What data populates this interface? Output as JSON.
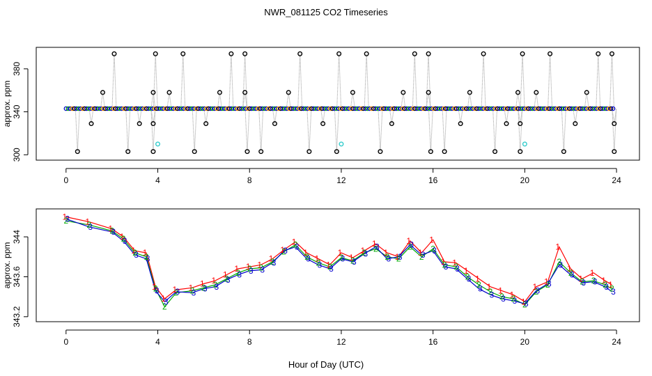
{
  "chart_data": [
    {
      "type": "scatter",
      "title": "NWR_081125  CO2 Timeseries",
      "xlabel": "",
      "ylabel": "approx. ppm",
      "xlim": [
        -1.3,
        25.0
      ],
      "ylim": [
        295,
        400
      ],
      "x_ticks": [
        0,
        4,
        8,
        12,
        16,
        20,
        24
      ],
      "y_ticks": [
        300,
        340,
        380
      ],
      "baseline": 343,
      "spike_high": 394,
      "spike_low": 303,
      "spike_mid_high": 358,
      "spike_mid_low": 329,
      "upper_spikes": [
        2.1,
        3.9,
        5.1,
        7.2,
        7.8,
        10.2,
        11.9,
        13.1,
        15.2,
        15.8,
        18.2,
        19.9,
        21.1,
        23.2,
        23.8
      ],
      "lower_spikes": [
        0.5,
        2.7,
        3.8,
        5.6,
        7.9,
        8.5,
        10.6,
        11.8,
        13.7,
        15.9,
        16.5,
        18.7,
        19.8,
        21.7,
        23.9
      ],
      "mid_high_spikes": [
        1.6,
        3.8,
        4.5,
        6.7,
        7.8,
        9.7,
        12.5,
        14.7,
        15.8,
        17.6,
        19.7,
        20.5,
        22.7
      ],
      "mid_low_spikes": [
        1.1,
        3.2,
        3.8,
        6.1,
        9.1,
        11.2,
        14.2,
        17.2,
        19.2,
        19.8,
        22.2,
        23.9
      ],
      "cyan_points": {
        "x": [
          4.0,
          12.0,
          20.0
        ],
        "y": [
          310,
          310,
          310
        ]
      }
    },
    {
      "type": "line",
      "title": "",
      "xlabel": "Hour of Day (UTC)",
      "ylabel": "approx. ppm",
      "xlim": [
        -1.3,
        25.0
      ],
      "ylim": [
        343.15,
        344.28
      ],
      "x_ticks": [
        0,
        4,
        8,
        12,
        16,
        20,
        24
      ],
      "y_ticks": [
        343.2,
        343.6,
        344.0
      ],
      "x": [
        0.0,
        1.0,
        2.0,
        2.5,
        3.0,
        3.5,
        3.9,
        4.3,
        4.8,
        5.5,
        6.0,
        6.5,
        7.0,
        7.5,
        8.0,
        8.5,
        9.0,
        9.5,
        10.0,
        10.5,
        11.0,
        11.5,
        12.0,
        12.5,
        13.0,
        13.5,
        14.0,
        14.5,
        15.0,
        15.5,
        16.0,
        16.5,
        17.0,
        17.5,
        18.0,
        18.5,
        19.0,
        19.5,
        20.0,
        20.5,
        21.0,
        21.5,
        22.0,
        22.5,
        23.0,
        23.5,
        23.8
      ],
      "series": [
        {
          "name": "1",
          "color": "#ff0000",
          "values": [
            344.2,
            344.15,
            344.08,
            344.0,
            343.86,
            343.84,
            343.5,
            343.38,
            343.47,
            343.49,
            343.53,
            343.56,
            343.62,
            343.68,
            343.7,
            343.72,
            343.78,
            343.87,
            343.95,
            343.84,
            343.78,
            343.72,
            343.84,
            343.79,
            343.86,
            343.93,
            343.84,
            343.8,
            343.96,
            343.84,
            343.97,
            343.75,
            343.74,
            343.66,
            343.58,
            343.5,
            343.46,
            343.42,
            343.35,
            343.5,
            343.55,
            343.9,
            343.68,
            343.58,
            343.64,
            343.56,
            343.52
          ]
        },
        {
          "name": "2",
          "color": "#00aa00",
          "values": [
            344.16,
            344.12,
            344.06,
            343.98,
            343.84,
            343.8,
            343.48,
            343.3,
            343.44,
            343.46,
            343.49,
            343.52,
            343.58,
            343.64,
            343.68,
            343.69,
            343.75,
            343.85,
            343.92,
            343.8,
            343.74,
            343.7,
            343.79,
            343.76,
            343.84,
            343.88,
            343.8,
            343.78,
            343.9,
            343.8,
            343.88,
            343.72,
            343.7,
            343.6,
            343.52,
            343.45,
            343.4,
            343.38,
            343.32,
            343.45,
            343.52,
            343.75,
            343.64,
            343.55,
            343.56,
            343.52,
            343.48
          ]
        },
        {
          "name": "3",
          "color": "#0000cc",
          "values": [
            344.18,
            344.1,
            344.05,
            343.96,
            343.82,
            343.78,
            343.46,
            343.35,
            343.45,
            343.44,
            343.48,
            343.5,
            343.57,
            343.62,
            343.66,
            343.67,
            343.74,
            343.86,
            343.9,
            343.78,
            343.72,
            343.68,
            343.78,
            343.75,
            343.83,
            343.9,
            343.78,
            343.8,
            343.92,
            343.82,
            343.86,
            343.7,
            343.68,
            343.58,
            343.48,
            343.42,
            343.38,
            343.36,
            343.33,
            343.46,
            343.53,
            343.72,
            343.62,
            343.54,
            343.55,
            343.5,
            343.45
          ]
        }
      ]
    }
  ]
}
